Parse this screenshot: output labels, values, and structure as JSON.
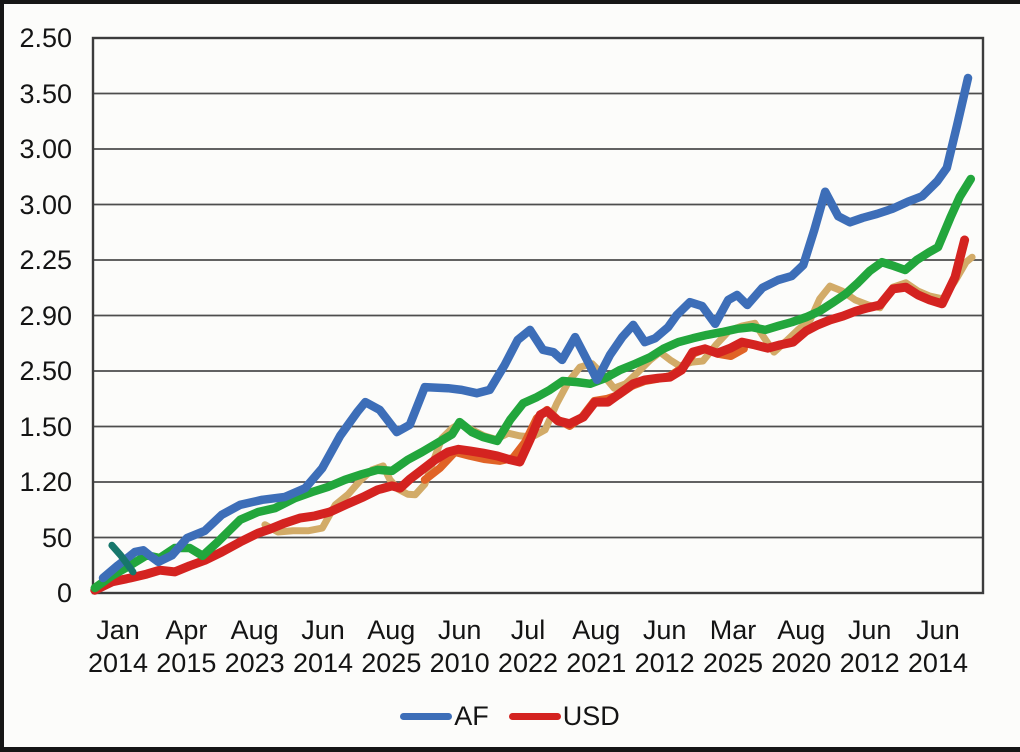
{
  "chart_data": {
    "type": "line",
    "title": "",
    "xlabel": "",
    "ylabel": "",
    "grid": true,
    "grid_color": "#4d4d4d",
    "border_color": "#3c3c3c",
    "text_color": "#141414",
    "background": "#fcfcfa",
    "y_ticks": [
      "2.50",
      "3.50",
      "3.00",
      "3.00",
      "2.25",
      "2.90",
      "2.50",
      "1.50",
      "1.20",
      "50",
      "0"
    ],
    "x_ticks": [
      {
        "month": "Jan",
        "year": "2014"
      },
      {
        "month": "Apr",
        "year": "2015"
      },
      {
        "month": "Aug",
        "year": "2023"
      },
      {
        "month": "Jun",
        "year": "2014"
      },
      {
        "month": "Aug",
        "year": "2025"
      },
      {
        "month": "Jun",
        "year": "2010"
      },
      {
        "month": "Jul",
        "year": "2022"
      },
      {
        "month": "Aug",
        "year": "2021"
      },
      {
        "month": "Jun",
        "year": "2012"
      },
      {
        "month": "Mar",
        "year": "2025"
      },
      {
        "month": "Aug",
        "year": "2020"
      },
      {
        "month": "Jun",
        "year": "2012"
      },
      {
        "month": "Jun",
        "year": "2014"
      }
    ],
    "axis_units_note": "series points are [x_tick_index, y_gridline_units]; y gridlines are evenly spaced 0..10 bottom-to-top",
    "series": [
      {
        "name": "tan",
        "color": "#d2ab68",
        "width": 7,
        "in_legend": false,
        "points": [
          [
            2.15,
            1.23
          ],
          [
            2.34,
            1.1
          ],
          [
            2.56,
            1.12
          ],
          [
            2.78,
            1.12
          ],
          [
            2.99,
            1.17
          ],
          [
            3.18,
            1.59
          ],
          [
            3.37,
            1.78
          ],
          [
            3.54,
            2.02
          ],
          [
            3.72,
            2.22
          ],
          [
            3.88,
            2.29
          ],
          [
            3.98,
            2.04
          ],
          [
            4.1,
            1.87
          ],
          [
            4.24,
            1.78
          ],
          [
            4.35,
            1.77
          ],
          [
            4.49,
            1.96
          ],
          [
            4.61,
            2.36
          ],
          [
            4.74,
            2.79
          ],
          [
            4.89,
            2.97
          ],
          [
            5.0,
            3.05
          ],
          [
            5.18,
            2.94
          ],
          [
            5.36,
            2.83
          ],
          [
            5.53,
            2.77
          ],
          [
            5.71,
            2.88
          ],
          [
            5.88,
            2.83
          ],
          [
            6.06,
            2.81
          ],
          [
            6.25,
            2.94
          ],
          [
            6.42,
            3.41
          ],
          [
            6.59,
            3.8
          ],
          [
            6.76,
            4.07
          ],
          [
            6.94,
            4.13
          ],
          [
            7.1,
            3.93
          ],
          [
            7.26,
            3.69
          ],
          [
            7.43,
            3.77
          ],
          [
            7.61,
            3.98
          ],
          [
            7.79,
            4.2
          ],
          [
            7.93,
            4.34
          ],
          [
            8.08,
            4.2
          ],
          [
            8.22,
            4.09
          ],
          [
            8.4,
            4.16
          ],
          [
            8.56,
            4.18
          ],
          [
            8.75,
            4.47
          ],
          [
            8.94,
            4.72
          ],
          [
            9.13,
            4.81
          ],
          [
            9.32,
            4.86
          ],
          [
            9.45,
            4.61
          ],
          [
            9.6,
            4.34
          ],
          [
            9.78,
            4.54
          ],
          [
            9.95,
            4.74
          ],
          [
            10.13,
            4.92
          ],
          [
            10.27,
            5.3
          ],
          [
            10.42,
            5.53
          ],
          [
            10.6,
            5.44
          ],
          [
            10.79,
            5.28
          ],
          [
            10.98,
            5.19
          ],
          [
            11.15,
            5.14
          ],
          [
            11.34,
            5.51
          ],
          [
            11.53,
            5.59
          ],
          [
            11.71,
            5.44
          ],
          [
            11.88,
            5.35
          ],
          [
            12.07,
            5.3
          ],
          [
            12.25,
            5.62
          ],
          [
            12.41,
            5.96
          ],
          [
            12.5,
            6.05
          ]
        ]
      },
      {
        "name": "orange",
        "color": "#e06326",
        "width": 8,
        "in_legend": false,
        "points": [
          [
            4.49,
            2.04
          ],
          [
            4.71,
            2.25
          ],
          [
            4.93,
            2.54
          ],
          [
            5.15,
            2.47
          ],
          [
            5.37,
            2.41
          ],
          [
            5.59,
            2.38
          ],
          [
            5.78,
            2.43
          ],
          [
            5.96,
            2.72
          ],
          [
            6.13,
            3.15
          ],
          [
            6.28,
            3.3
          ],
          [
            6.44,
            3.12
          ],
          [
            6.61,
            3.01
          ],
          [
            6.79,
            3.17
          ],
          [
            6.97,
            3.46
          ],
          [
            7.16,
            3.5
          ],
          [
            7.33,
            3.57
          ],
          [
            7.52,
            3.73
          ],
          [
            7.71,
            3.82
          ],
          [
            7.9,
            3.86
          ],
          [
            8.08,
            3.91
          ],
          [
            8.25,
            4.05
          ],
          [
            8.43,
            4.32
          ],
          [
            8.6,
            4.4
          ],
          [
            8.78,
            4.31
          ],
          [
            8.97,
            4.27
          ],
          [
            9.16,
            4.4
          ]
        ]
      },
      {
        "name": "USD",
        "color": "#d42320",
        "width": 9,
        "in_legend": true,
        "points": [
          [
            -0.34,
            0.05
          ],
          [
            -0.09,
            0.2
          ],
          [
            0.18,
            0.27
          ],
          [
            0.42,
            0.34
          ],
          [
            0.61,
            0.41
          ],
          [
            0.83,
            0.38
          ],
          [
            1.05,
            0.49
          ],
          [
            1.27,
            0.59
          ],
          [
            1.52,
            0.74
          ],
          [
            1.79,
            0.92
          ],
          [
            2.05,
            1.08
          ],
          [
            2.22,
            1.15
          ],
          [
            2.44,
            1.26
          ],
          [
            2.66,
            1.35
          ],
          [
            2.88,
            1.39
          ],
          [
            3.1,
            1.46
          ],
          [
            3.35,
            1.6
          ],
          [
            3.59,
            1.73
          ],
          [
            3.8,
            1.86
          ],
          [
            4.01,
            1.93
          ],
          [
            4.13,
            1.89
          ],
          [
            4.27,
            2.05
          ],
          [
            4.45,
            2.22
          ],
          [
            4.64,
            2.4
          ],
          [
            4.83,
            2.54
          ],
          [
            4.98,
            2.59
          ],
          [
            5.15,
            2.56
          ],
          [
            5.34,
            2.52
          ],
          [
            5.55,
            2.47
          ],
          [
            5.74,
            2.4
          ],
          [
            5.88,
            2.36
          ],
          [
            6.03,
            2.76
          ],
          [
            6.18,
            3.21
          ],
          [
            6.28,
            3.28
          ],
          [
            6.44,
            3.1
          ],
          [
            6.61,
            3.05
          ],
          [
            6.81,
            3.17
          ],
          [
            6.98,
            3.44
          ],
          [
            7.17,
            3.44
          ],
          [
            7.35,
            3.6
          ],
          [
            7.54,
            3.77
          ],
          [
            7.71,
            3.84
          ],
          [
            7.9,
            3.87
          ],
          [
            8.08,
            3.89
          ],
          [
            8.25,
            4.02
          ],
          [
            8.41,
            4.34
          ],
          [
            8.59,
            4.4
          ],
          [
            8.77,
            4.32
          ],
          [
            8.96,
            4.41
          ],
          [
            9.13,
            4.52
          ],
          [
            9.32,
            4.47
          ],
          [
            9.51,
            4.41
          ],
          [
            9.69,
            4.47
          ],
          [
            9.88,
            4.52
          ],
          [
            10.07,
            4.72
          ],
          [
            10.24,
            4.83
          ],
          [
            10.42,
            4.92
          ],
          [
            10.61,
            4.99
          ],
          [
            10.8,
            5.08
          ],
          [
            10.98,
            5.14
          ],
          [
            11.15,
            5.19
          ],
          [
            11.34,
            5.48
          ],
          [
            11.53,
            5.51
          ],
          [
            11.71,
            5.37
          ],
          [
            11.88,
            5.28
          ],
          [
            12.06,
            5.21
          ],
          [
            12.25,
            5.69
          ],
          [
            12.39,
            6.36
          ]
        ]
      },
      {
        "name": "green",
        "color": "#22a63c",
        "width": 8.5,
        "in_legend": false,
        "points": [
          [
            -0.34,
            0.09
          ],
          [
            -0.09,
            0.31
          ],
          [
            0.18,
            0.5
          ],
          [
            0.42,
            0.68
          ],
          [
            0.61,
            0.63
          ],
          [
            0.83,
            0.81
          ],
          [
            1.05,
            0.81
          ],
          [
            1.24,
            0.67
          ],
          [
            1.46,
            0.92
          ],
          [
            1.79,
            1.32
          ],
          [
            2.05,
            1.46
          ],
          [
            2.3,
            1.53
          ],
          [
            2.59,
            1.71
          ],
          [
            2.84,
            1.82
          ],
          [
            3.07,
            1.91
          ],
          [
            3.32,
            2.04
          ],
          [
            3.57,
            2.14
          ],
          [
            3.8,
            2.22
          ],
          [
            4.01,
            2.2
          ],
          [
            4.24,
            2.4
          ],
          [
            4.45,
            2.54
          ],
          [
            4.67,
            2.7
          ],
          [
            4.89,
            2.86
          ],
          [
            5.0,
            3.08
          ],
          [
            5.18,
            2.9
          ],
          [
            5.34,
            2.81
          ],
          [
            5.55,
            2.74
          ],
          [
            5.74,
            3.12
          ],
          [
            5.93,
            3.42
          ],
          [
            6.13,
            3.53
          ],
          [
            6.32,
            3.66
          ],
          [
            6.51,
            3.82
          ],
          [
            6.72,
            3.8
          ],
          [
            6.91,
            3.77
          ],
          [
            7.13,
            3.87
          ],
          [
            7.35,
            4.02
          ],
          [
            7.57,
            4.13
          ],
          [
            7.79,
            4.25
          ],
          [
            7.98,
            4.4
          ],
          [
            8.2,
            4.52
          ],
          [
            8.41,
            4.59
          ],
          [
            8.62,
            4.65
          ],
          [
            8.84,
            4.7
          ],
          [
            9.06,
            4.76
          ],
          [
            9.28,
            4.79
          ],
          [
            9.47,
            4.74
          ],
          [
            9.66,
            4.81
          ],
          [
            9.86,
            4.88
          ],
          [
            10.07,
            4.97
          ],
          [
            10.27,
            5.08
          ],
          [
            10.46,
            5.23
          ],
          [
            10.65,
            5.39
          ],
          [
            10.83,
            5.59
          ],
          [
            11.0,
            5.8
          ],
          [
            11.18,
            5.96
          ],
          [
            11.36,
            5.89
          ],
          [
            11.52,
            5.82
          ],
          [
            11.69,
            6.0
          ],
          [
            11.87,
            6.14
          ],
          [
            12.0,
            6.23
          ],
          [
            12.18,
            6.76
          ],
          [
            12.32,
            7.14
          ],
          [
            12.48,
            7.46
          ]
        ]
      },
      {
        "name": "AF",
        "color": "#3d6eb8",
        "width": 8.5,
        "in_legend": true,
        "points": [
          [
            -0.22,
            0.27
          ],
          [
            0.0,
            0.5
          ],
          [
            0.25,
            0.74
          ],
          [
            0.37,
            0.77
          ],
          [
            0.47,
            0.67
          ],
          [
            0.59,
            0.56
          ],
          [
            0.79,
            0.68
          ],
          [
            1.01,
            0.99
          ],
          [
            1.27,
            1.12
          ],
          [
            1.52,
            1.41
          ],
          [
            1.79,
            1.59
          ],
          [
            2.11,
            1.68
          ],
          [
            2.44,
            1.73
          ],
          [
            2.74,
            1.89
          ],
          [
            2.99,
            2.25
          ],
          [
            3.25,
            2.83
          ],
          [
            3.5,
            3.26
          ],
          [
            3.62,
            3.44
          ],
          [
            3.83,
            3.3
          ],
          [
            4.08,
            2.9
          ],
          [
            4.27,
            3.03
          ],
          [
            4.49,
            3.71
          ],
          [
            4.83,
            3.69
          ],
          [
            5.03,
            3.66
          ],
          [
            5.25,
            3.6
          ],
          [
            5.44,
            3.66
          ],
          [
            5.66,
            4.11
          ],
          [
            5.85,
            4.56
          ],
          [
            6.03,
            4.74
          ],
          [
            6.22,
            4.38
          ],
          [
            6.37,
            4.34
          ],
          [
            6.5,
            4.2
          ],
          [
            6.69,
            4.61
          ],
          [
            6.88,
            4.16
          ],
          [
            7.01,
            3.84
          ],
          [
            7.2,
            4.29
          ],
          [
            7.38,
            4.61
          ],
          [
            7.54,
            4.83
          ],
          [
            7.71,
            4.52
          ],
          [
            7.86,
            4.59
          ],
          [
            8.05,
            4.79
          ],
          [
            8.18,
            5.01
          ],
          [
            8.37,
            5.24
          ],
          [
            8.55,
            5.17
          ],
          [
            8.74,
            4.85
          ],
          [
            8.93,
            5.28
          ],
          [
            9.06,
            5.37
          ],
          [
            9.21,
            5.19
          ],
          [
            9.43,
            5.5
          ],
          [
            9.66,
            5.64
          ],
          [
            9.86,
            5.71
          ],
          [
            10.03,
            5.91
          ],
          [
            10.19,
            6.54
          ],
          [
            10.35,
            7.23
          ],
          [
            10.54,
            6.79
          ],
          [
            10.71,
            6.68
          ],
          [
            10.9,
            6.76
          ],
          [
            11.11,
            6.83
          ],
          [
            11.33,
            6.92
          ],
          [
            11.56,
            7.05
          ],
          [
            11.77,
            7.15
          ],
          [
            11.99,
            7.42
          ],
          [
            12.13,
            7.66
          ],
          [
            12.28,
            8.43
          ],
          [
            12.44,
            9.28
          ]
        ]
      },
      {
        "name": "teal-mark",
        "color": "#17776b",
        "width": 7,
        "in_legend": false,
        "points": [
          [
            -0.09,
            0.86
          ],
          [
            0.04,
            0.68
          ],
          [
            0.22,
            0.38
          ]
        ]
      }
    ],
    "legend": [
      {
        "label": "AF",
        "color": "#3d6eb8"
      },
      {
        "label": "USD",
        "color": "#d42320"
      }
    ],
    "legend_position": "bottom-center"
  }
}
